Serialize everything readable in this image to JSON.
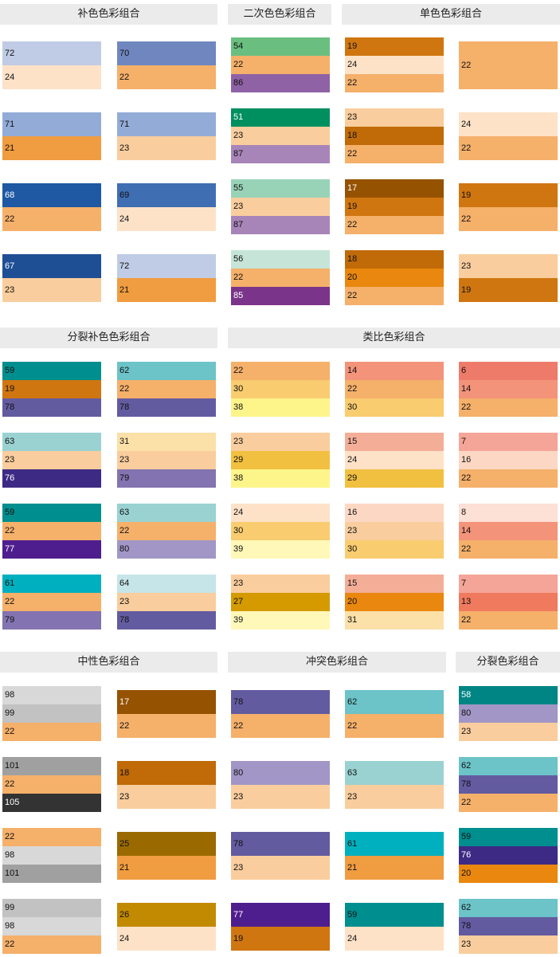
{
  "sections": [
    {
      "headers": [
        "补色色彩组合",
        "二次色色彩组合",
        "单色色彩组合"
      ],
      "columns": [
        [
          [
            72,
            24
          ],
          [
            71,
            21
          ],
          [
            68,
            22
          ],
          [
            67,
            23
          ]
        ],
        [
          [
            70,
            22
          ],
          [
            71,
            23
          ],
          [
            69,
            24
          ],
          [
            72,
            21
          ]
        ],
        [
          [
            54,
            22,
            86
          ],
          [
            51,
            23,
            87
          ],
          [
            55,
            23,
            87
          ],
          [
            56,
            22,
            85
          ]
        ],
        [
          [
            19,
            24,
            22
          ],
          [
            23,
            18,
            22
          ],
          [
            17,
            19,
            22
          ],
          [
            18,
            20,
            22
          ]
        ],
        [
          [
            22
          ],
          [
            24,
            22
          ],
          [
            19,
            22
          ],
          [
            23,
            19
          ]
        ]
      ]
    },
    {
      "headers": [
        "分裂补色色彩组合",
        "类比色彩组合"
      ],
      "columns": [
        [
          [
            59,
            19,
            78
          ],
          [
            63,
            23,
            76
          ],
          [
            59,
            22,
            77
          ],
          [
            61,
            22,
            79
          ]
        ],
        [
          [
            62,
            22,
            78
          ],
          [
            31,
            23,
            79
          ],
          [
            63,
            22,
            80
          ],
          [
            64,
            23,
            78
          ]
        ],
        [
          [
            22,
            30,
            38
          ],
          [
            23,
            29,
            38
          ],
          [
            24,
            30,
            39
          ],
          [
            23,
            27,
            39
          ]
        ],
        [
          [
            14,
            22,
            30
          ],
          [
            15,
            24,
            29
          ],
          [
            16,
            23,
            30
          ],
          [
            15,
            20,
            31
          ]
        ],
        [
          [
            6,
            14,
            22
          ],
          [
            7,
            16,
            22
          ],
          [
            8,
            14,
            22
          ],
          [
            7,
            13,
            22
          ]
        ]
      ]
    },
    {
      "headers": [
        "中性色彩组合",
        "冲突色彩组合",
        "分裂色彩组合"
      ],
      "columns": [
        [
          [
            98,
            99,
            22
          ],
          [
            101,
            22,
            105
          ],
          [
            22,
            98,
            101
          ],
          [
            99,
            98,
            22
          ]
        ],
        [
          [
            17,
            22
          ],
          [
            18,
            23
          ],
          [
            25,
            21
          ],
          [
            26,
            24
          ]
        ],
        [
          [
            78,
            22
          ],
          [
            80,
            23
          ],
          [
            78,
            23
          ],
          [
            77,
            19
          ]
        ],
        [
          [
            62,
            22
          ],
          [
            63,
            23
          ],
          [
            61,
            21
          ],
          [
            59,
            24
          ]
        ],
        [
          [
            58,
            80,
            23
          ],
          [
            62,
            78,
            22
          ],
          [
            59,
            76,
            20
          ],
          [
            62,
            78,
            23
          ]
        ]
      ]
    }
  ],
  "palette": {
    "6": "#ee7b6a",
    "7": "#f5a598",
    "8": "#fde0d6",
    "13": "#ef7a5e",
    "14": "#f3937a",
    "15": "#f4ae98",
    "16": "#fcd8c4",
    "17": "#955200",
    "18": "#c06a08",
    "19": "#d07610",
    "20": "#e9870f",
    "21": "#f09c40",
    "22": "#f5b06a",
    "23": "#f9cd9d",
    "24": "#fde2c8",
    "25": "#9a6a00",
    "26": "#c28a00",
    "27": "#d49a00",
    "29": "#f2c040",
    "30": "#f9cc70",
    "31": "#fbe0a8",
    "38": "#fdf58a",
    "39": "#fff8b8",
    "51": "#008f5f",
    "54": "#6abf80",
    "55": "#98d3b8",
    "56": "#c6e5d8",
    "58": "#008585",
    "59": "#008e8e",
    "61": "#00b0be",
    "62": "#6cc3c8",
    "63": "#9ad2d2",
    "64": "#c6e5e8",
    "67": "#1e4f95",
    "68": "#1f58a3",
    "69": "#3f6eb2",
    "70": "#7086bf",
    "71": "#93acd7",
    "72": "#c0cce5",
    "76": "#3d2a85",
    "77": "#4f1e8e",
    "78": "#635ba0",
    "79": "#8373b0",
    "80": "#a196c5",
    "85": "#7a358a",
    "86": "#8e62a5",
    "87": "#a785b9",
    "98": "#d8d8d8",
    "99": "#c2c2c2",
    "101": "#a0a0a0",
    "105": "#333333"
  },
  "header_bg": "#ebebeb"
}
